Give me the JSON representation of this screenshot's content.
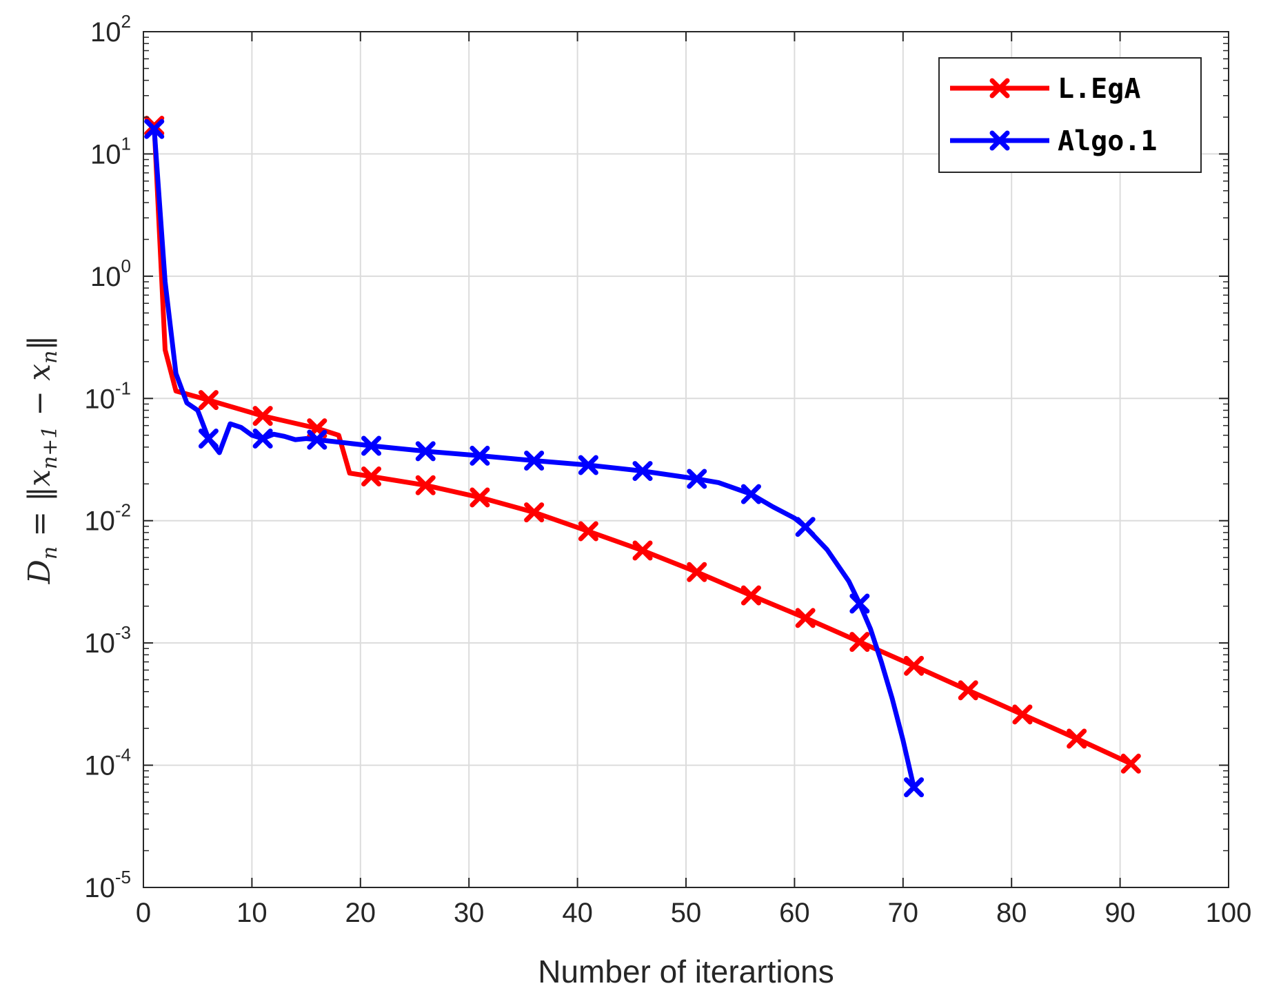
{
  "chart_data": {
    "type": "line",
    "xlabel": "Number of iterartions",
    "ylabel": "D_n = ||x_{n+1} − x_n||",
    "xlim": [
      0,
      100
    ],
    "ylim": [
      1e-05,
      100
    ],
    "yscale": "log",
    "grid": true,
    "legend_position": "top-right",
    "x_ticks": [
      0,
      10,
      20,
      30,
      40,
      50,
      60,
      70,
      80,
      90,
      100
    ],
    "y_ticks": [
      {
        "base": "10",
        "exp": "-5",
        "value": 1e-05
      },
      {
        "base": "10",
        "exp": "-4",
        "value": 0.0001
      },
      {
        "base": "10",
        "exp": "-3",
        "value": 0.001
      },
      {
        "base": "10",
        "exp": "-2",
        "value": 0.01
      },
      {
        "base": "10",
        "exp": "-1",
        "value": 0.1
      },
      {
        "base": "10",
        "exp": "0",
        "value": 1
      },
      {
        "base": "10",
        "exp": "1",
        "value": 10
      },
      {
        "base": "10",
        "exp": "2",
        "value": 100
      }
    ],
    "series": [
      {
        "name": "L.EgA",
        "color": "#ff0000",
        "x": [
          1,
          2,
          3,
          6,
          11,
          16,
          18,
          19,
          21,
          26,
          31,
          36,
          41,
          46,
          51,
          56,
          61,
          66,
          71,
          76,
          81,
          86,
          91
        ],
        "y": [
          17,
          0.25,
          0.115,
          0.097,
          0.072,
          0.057,
          0.05,
          0.0245,
          0.023,
          0.0195,
          0.0155,
          0.0117,
          0.0082,
          0.0057,
          0.0038,
          0.00245,
          0.0016,
          0.00102,
          0.00065,
          0.00041,
          0.00026,
          0.000165,
          0.000103
        ],
        "marker_x": [
          1,
          6,
          11,
          16,
          21,
          26,
          31,
          36,
          41,
          46,
          51,
          56,
          61,
          66,
          71,
          76,
          81,
          86,
          91
        ]
      },
      {
        "name": "Algo.1",
        "color": "#0000ff",
        "x": [
          1,
          2,
          3,
          4,
          5,
          6,
          7,
          8,
          9,
          10,
          11,
          12,
          13,
          14,
          15,
          16,
          21,
          26,
          31,
          36,
          41,
          46,
          51,
          53,
          56,
          58,
          60,
          61,
          63,
          65,
          66,
          67,
          68,
          69,
          70,
          71
        ],
        "y": [
          16,
          0.9,
          0.16,
          0.092,
          0.08,
          0.047,
          0.036,
          0.062,
          0.058,
          0.05,
          0.047,
          0.051,
          0.049,
          0.046,
          0.047,
          0.046,
          0.041,
          0.037,
          0.034,
          0.031,
          0.0285,
          0.0255,
          0.022,
          0.0205,
          0.0165,
          0.013,
          0.0105,
          0.0089,
          0.0058,
          0.0032,
          0.0021,
          0.0013,
          0.0007,
          0.00035,
          0.00016,
          6.6e-05
        ],
        "marker_x": [
          1,
          6,
          11,
          16,
          21,
          26,
          31,
          36,
          41,
          46,
          51,
          56,
          61,
          66,
          71
        ]
      }
    ]
  }
}
